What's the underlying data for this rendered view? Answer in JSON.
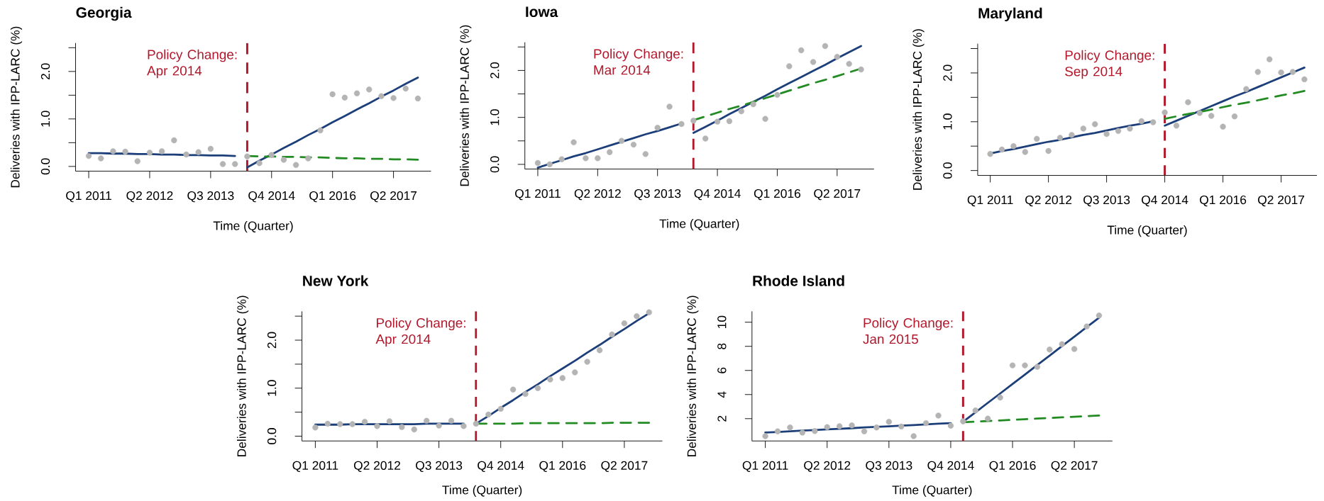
{
  "chart_data": [
    {
      "type": "scatter",
      "title": "Georgia",
      "xlabel": "Time (Quarter)",
      "ylabel": "Deliveries with IPP-LARC (%)",
      "ylim": [
        -0.1,
        2.6
      ],
      "categories": [
        "Q1 2011",
        null,
        null,
        null,
        null,
        "Q2 2012",
        null,
        null,
        null,
        null,
        "Q3 2013",
        null,
        null,
        null,
        null,
        "Q4 2014",
        null,
        null,
        null,
        null,
        "Q1 2016",
        null,
        null,
        null,
        null,
        "Q2 2017",
        null,
        null
      ],
      "yticks": [
        {
          "value": 0,
          "label": "0.0"
        },
        {
          "value": 0.5,
          "label": null
        },
        {
          "value": 1,
          "label": "1.0"
        },
        {
          "value": 1.5,
          "label": null
        },
        {
          "value": 2,
          "label": "2.0"
        },
        {
          "value": 2.5,
          "label": null
        }
      ],
      "series": [
        {
          "color": "#b4b4b4",
          "marker": "circle",
          "values": [
            0.22,
            0.17,
            0.32,
            0.31,
            0.11,
            0.29,
            0.32,
            0.55,
            0.25,
            0.3,
            0.37,
            0.05,
            0.05,
            0.21,
            0.07,
            0.24,
            0.14,
            0.03,
            0.17,
            0.76,
            1.52,
            1.45,
            1.54,
            1.62,
            1.48,
            1.44,
            1.64,
            1.43
          ]
        },
        {
          "type": "line",
          "color": "#1c3f7a",
          "values": [
            0.28,
            0.28,
            0.27,
            0.27,
            0.26,
            0.26,
            0.25,
            0.25,
            0.24,
            0.24,
            0.23,
            0.23,
            0.22,
            null,
            null,
            null,
            null,
            null,
            null,
            null,
            null,
            null,
            null,
            null,
            null,
            null,
            null,
            null
          ]
        },
        {
          "type": "line",
          "color": "#1c3f7a",
          "values": [
            null,
            null,
            null,
            null,
            null,
            null,
            null,
            null,
            null,
            null,
            null,
            null,
            null,
            -0.02,
            0.12,
            0.25,
            0.39,
            0.52,
            0.66,
            0.79,
            0.93,
            1.06,
            1.2,
            1.33,
            1.47,
            1.6,
            1.74,
            1.87
          ]
        },
        {
          "type": "line",
          "color": "#228b22",
          "line_style": "dashed",
          "values": [
            null,
            null,
            null,
            null,
            null,
            null,
            null,
            null,
            null,
            null,
            null,
            null,
            null,
            0.22,
            0.21,
            0.21,
            0.2,
            0.2,
            0.19,
            0.19,
            0.18,
            0.17,
            0.17,
            0.16,
            0.16,
            0.15,
            0.15,
            0.14
          ]
        }
      ],
      "annotations": [
        "Policy Change: Apr 2014"
      ]
    },
    {
      "type": "scatter",
      "title": "Iowa",
      "xlabel": "Time (Quarter)",
      "ylabel": "Deliveries with IPP-LARC (%)",
      "ylim": [
        -0.1,
        2.6
      ],
      "categories": [
        "Q1 2011",
        null,
        null,
        null,
        null,
        "Q2 2012",
        null,
        null,
        null,
        null,
        "Q3 2013",
        null,
        null,
        null,
        null,
        "Q4 2014",
        null,
        null,
        null,
        null,
        "Q1 2016",
        null,
        null,
        null,
        null,
        "Q2 2017",
        null,
        null
      ],
      "yticks": [
        {
          "value": 0,
          "label": "0.0"
        },
        {
          "value": 0.5,
          "label": null
        },
        {
          "value": 1,
          "label": "1.0"
        },
        {
          "value": 1.5,
          "label": null
        },
        {
          "value": 2,
          "label": "2.0"
        },
        {
          "value": 2.5,
          "label": null
        }
      ],
      "series": [
        {
          "color": "#b4b4b4",
          "marker": "circle",
          "values": [
            0.03,
            0.0,
            0.11,
            0.47,
            0.13,
            0.13,
            0.26,
            0.5,
            0.42,
            0.22,
            0.78,
            1.23,
            0.86,
            0.93,
            0.55,
            0.91,
            0.92,
            1.13,
            1.28,
            0.97,
            1.48,
            2.09,
            2.43,
            2.18,
            2.52,
            2.29,
            2.14,
            2.02
          ]
        },
        {
          "type": "line",
          "color": "#1c3f7a",
          "values": [
            -0.07,
            0.01,
            0.09,
            0.17,
            0.24,
            0.32,
            0.4,
            0.48,
            0.56,
            0.64,
            0.71,
            0.79,
            0.87,
            null,
            null,
            null,
            null,
            null,
            null,
            null,
            null,
            null,
            null,
            null,
            null,
            null,
            null,
            null
          ]
        },
        {
          "type": "line",
          "color": "#1c3f7a",
          "values": [
            null,
            null,
            null,
            null,
            null,
            null,
            null,
            null,
            null,
            null,
            null,
            null,
            null,
            0.67,
            0.8,
            0.93,
            1.07,
            1.2,
            1.33,
            1.46,
            1.6,
            1.73,
            1.86,
            1.99,
            2.12,
            2.26,
            2.39,
            2.52
          ]
        },
        {
          "type": "line",
          "color": "#228b22",
          "line_style": "dashed",
          "values": [
            null,
            null,
            null,
            null,
            null,
            null,
            null,
            null,
            null,
            null,
            null,
            null,
            null,
            0.94,
            1.02,
            1.1,
            1.18,
            1.25,
            1.33,
            1.41,
            1.49,
            1.57,
            1.65,
            1.73,
            1.8,
            1.88,
            1.96,
            2.04
          ]
        }
      ],
      "annotations": [
        "Policy Change: Mar 2014"
      ]
    },
    {
      "type": "scatter",
      "title": "Maryland",
      "xlabel": "Time (Quarter)",
      "ylabel": "Deliveries with IPP-LARC (%)",
      "ylim": [
        -0.1,
        2.6
      ],
      "categories": [
        "Q1 2011",
        null,
        null,
        null,
        null,
        "Q2 2012",
        null,
        null,
        null,
        null,
        "Q3 2013",
        null,
        null,
        null,
        null,
        "Q4 2014",
        null,
        null,
        null,
        null,
        "Q1 2016",
        null,
        null,
        null,
        null,
        "Q2 2017",
        null,
        null
      ],
      "yticks": [
        {
          "value": 0,
          "label": "0.0"
        },
        {
          "value": 0.5,
          "label": null
        },
        {
          "value": 1,
          "label": "1.0"
        },
        {
          "value": 1.5,
          "label": null
        },
        {
          "value": 2,
          "label": "2.0"
        },
        {
          "value": 2.5,
          "label": null
        }
      ],
      "series": [
        {
          "color": "#b4b4b4",
          "marker": "circle",
          "values": [
            0.34,
            0.43,
            0.5,
            0.38,
            0.65,
            0.4,
            0.67,
            0.73,
            0.86,
            0.95,
            0.75,
            0.81,
            0.86,
            1.01,
            0.99,
            1.19,
            0.92,
            1.4,
            1.18,
            1.12,
            0.9,
            1.11,
            1.67,
            2.02,
            2.28,
            2.01,
            2.02,
            1.87
          ]
        },
        {
          "type": "line",
          "color": "#1c3f7a",
          "values": [
            0.35,
            0.4,
            0.44,
            0.49,
            0.54,
            0.59,
            0.63,
            0.68,
            0.73,
            0.77,
            0.82,
            0.87,
            0.92,
            0.96,
            1.01,
            null,
            null,
            null,
            null,
            null,
            null,
            null,
            null,
            null,
            null,
            null,
            null,
            null
          ]
        },
        {
          "type": "line",
          "color": "#1c3f7a",
          "values": [
            null,
            null,
            null,
            null,
            null,
            null,
            null,
            null,
            null,
            null,
            null,
            null,
            null,
            null,
            null,
            0.92,
            1.02,
            1.12,
            1.22,
            1.32,
            1.42,
            1.52,
            1.61,
            1.71,
            1.81,
            1.91,
            2.01,
            2.11
          ]
        },
        {
          "type": "line",
          "color": "#228b22",
          "line_style": "dashed",
          "values": [
            null,
            null,
            null,
            null,
            null,
            null,
            null,
            null,
            null,
            null,
            null,
            null,
            null,
            null,
            null,
            1.06,
            1.11,
            1.16,
            1.2,
            1.25,
            1.3,
            1.35,
            1.39,
            1.44,
            1.49,
            1.54,
            1.58,
            1.63
          ]
        }
      ],
      "ref_lines": [
        {
          "axis": "x",
          "value": "Q4 2014",
          "label": "Policy Change: Sep 2014",
          "color": "#b2182b",
          "line_style": "dashed"
        }
      ]
    },
    {
      "type": "scatter",
      "title": "New York",
      "xlabel": "Time (Quarter)",
      "ylabel": "Deliveries with IPP-LARC (%)",
      "ylim": [
        -0.1,
        2.6
      ],
      "categories": [
        "Q1 2011",
        null,
        null,
        null,
        null,
        "Q2 2012",
        null,
        null,
        null,
        null,
        "Q3 2013",
        null,
        null,
        null,
        null,
        "Q4 2014",
        null,
        null,
        null,
        null,
        "Q1 2016",
        null,
        null,
        null,
        null,
        "Q2 2017",
        null,
        null
      ],
      "yticks": [
        {
          "value": 0,
          "label": "0.0"
        },
        {
          "value": 0.5,
          "label": null
        },
        {
          "value": 1,
          "label": "1.0"
        },
        {
          "value": 1.5,
          "label": null
        },
        {
          "value": 2,
          "label": "2.0"
        },
        {
          "value": 2.5,
          "label": null
        }
      ],
      "series": [
        {
          "color": "#b4b4b4",
          "marker": "circle",
          "values": [
            0.18,
            0.26,
            0.25,
            0.25,
            0.3,
            0.21,
            0.31,
            0.19,
            0.14,
            0.32,
            0.22,
            0.32,
            0.21,
            0.26,
            0.45,
            0.57,
            0.97,
            0.88,
            1.0,
            1.18,
            1.21,
            1.33,
            1.55,
            1.79,
            2.12,
            2.35,
            2.5,
            2.58
          ]
        },
        {
          "type": "line",
          "color": "#1c3f7a",
          "values": [
            0.24,
            0.24,
            0.24,
            0.25,
            0.25,
            0.25,
            0.25,
            0.25,
            0.25,
            0.26,
            0.26,
            0.26,
            0.26,
            null,
            null,
            null,
            null,
            null,
            null,
            null,
            null,
            null,
            null,
            null,
            null,
            null,
            null,
            null
          ]
        },
        {
          "type": "line",
          "color": "#1c3f7a",
          "values": [
            null,
            null,
            null,
            null,
            null,
            null,
            null,
            null,
            null,
            null,
            null,
            null,
            null,
            0.26,
            0.42,
            0.59,
            0.75,
            0.92,
            1.08,
            1.25,
            1.41,
            1.57,
            1.74,
            1.9,
            2.07,
            2.23,
            2.4,
            2.56
          ]
        },
        {
          "type": "line",
          "color": "#228b22",
          "line_style": "dashed",
          "values": [
            null,
            null,
            null,
            null,
            null,
            null,
            null,
            null,
            null,
            null,
            null,
            null,
            null,
            0.26,
            0.26,
            0.26,
            0.26,
            0.27,
            0.27,
            0.27,
            0.27,
            0.27,
            0.27,
            0.27,
            0.28,
            0.28,
            0.28,
            0.28
          ]
        }
      ],
      "annotations": [
        "Policy Change: Apr 2014"
      ]
    },
    {
      "type": "scatter",
      "title": "Rhode Island",
      "xlabel": "Time (Quarter)",
      "ylabel": "Deliveries with IPP-LARC (%)",
      "ylim": [
        0.15,
        10.9
      ],
      "categories": [
        "Q1 2011",
        null,
        null,
        null,
        null,
        "Q2 2012",
        null,
        null,
        null,
        null,
        "Q3 2013",
        null,
        null,
        null,
        null,
        "Q4 2014",
        null,
        null,
        null,
        null,
        "Q1 2016",
        null,
        null,
        null,
        null,
        "Q2 2017",
        null,
        null
      ],
      "yticks": [
        2,
        4,
        6,
        8,
        10
      ],
      "series": [
        {
          "color": "#b4b4b4",
          "marker": "circle",
          "values": [
            0.55,
            0.95,
            1.27,
            0.85,
            0.97,
            1.3,
            1.37,
            1.44,
            0.95,
            1.27,
            1.74,
            1.35,
            0.55,
            1.63,
            2.26,
            1.42,
            1.79,
            2.68,
            2.0,
            3.75,
            6.42,
            6.42,
            6.3,
            7.73,
            8.18,
            7.78,
            9.65,
            10.56
          ]
        },
        {
          "type": "line",
          "color": "#1c3f7a",
          "values": [
            0.85,
            0.9,
            0.95,
            1.01,
            1.06,
            1.11,
            1.16,
            1.21,
            1.27,
            1.32,
            1.37,
            1.42,
            1.47,
            1.53,
            1.58,
            1.63,
            null,
            null,
            null,
            null,
            null,
            null,
            null,
            null,
            null,
            null,
            null,
            null
          ]
        },
        {
          "type": "line",
          "color": "#1c3f7a",
          "values": [
            null,
            null,
            null,
            null,
            null,
            null,
            null,
            null,
            null,
            null,
            null,
            null,
            null,
            null,
            null,
            null,
            1.74,
            2.52,
            3.31,
            4.09,
            4.88,
            5.66,
            6.45,
            7.23,
            8.02,
            8.8,
            9.59,
            10.37
          ]
        },
        {
          "type": "line",
          "color": "#228b22",
          "line_style": "dashed",
          "values": [
            null,
            null,
            null,
            null,
            null,
            null,
            null,
            null,
            null,
            null,
            null,
            null,
            null,
            null,
            null,
            null,
            1.7,
            1.75,
            1.8,
            1.85,
            1.9,
            1.95,
            2.01,
            2.06,
            2.11,
            2.16,
            2.21,
            2.26
          ]
        }
      ],
      "annotations": [
        "Policy Change: Jan 2015"
      ]
    }
  ]
}
